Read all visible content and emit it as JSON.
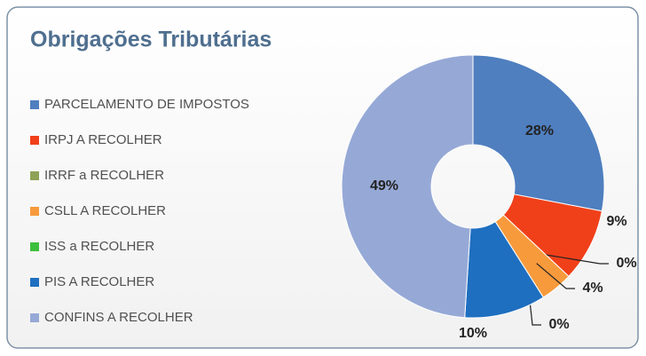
{
  "chart_data": {
    "type": "donut",
    "title": "Obrigações Tributárias",
    "categories": [
      "PARCELAMENTO DE IMPOSTOS",
      "IRPJ A RECOLHER",
      "IRRF a RECOLHER",
      "CSLL A RECOLHER",
      "ISS a RECOLHER",
      "PIS A RECOLHER",
      "CONFINS A RECOLHER"
    ],
    "values": [
      28,
      9,
      0,
      4,
      0,
      10,
      49
    ],
    "value_labels": [
      "28%",
      "9%",
      "0%",
      "4%",
      "0%",
      "10%",
      "49%"
    ],
    "colors": [
      "#4f7fbf",
      "#f0401a",
      "#8ea256",
      "#f79a3c",
      "#3cbf3c",
      "#1f6fc0",
      "#96a9d6"
    ],
    "legend": "left"
  }
}
